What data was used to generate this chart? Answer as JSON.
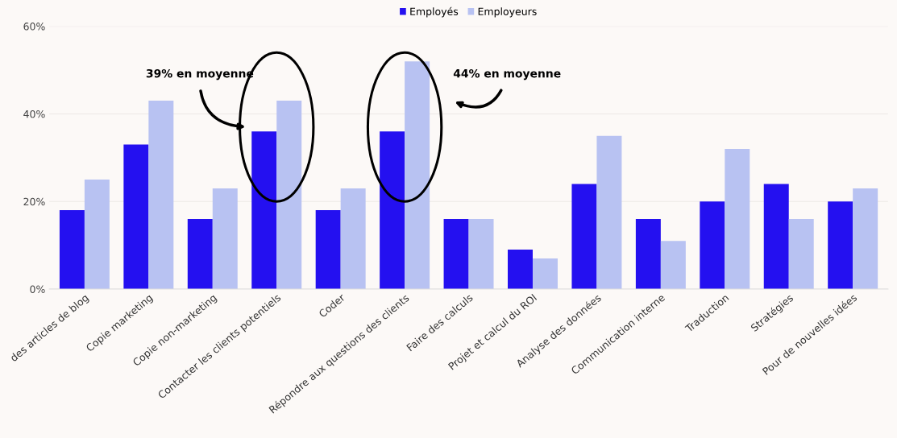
{
  "chart_data": {
    "type": "bar",
    "categories": [
      "des articles de blog",
      "Copie marketing",
      "Copie non-marketing",
      "Contacter les clients potentiels",
      "Coder",
      "Répondre aux questions des clients",
      "Faire des calculs",
      "Projet et calcul du ROI",
      "Analyse des données",
      "Communication interne",
      "Traduction",
      "Stratégies",
      "Pour de nouvelles idées"
    ],
    "series": [
      {
        "name": "Employés",
        "color": "#2410f0",
        "values": [
          18,
          33,
          16,
          36,
          18,
          36,
          16,
          9,
          24,
          16,
          20,
          24,
          20
        ]
      },
      {
        "name": "Employeurs",
        "color": "#b8c2f2",
        "values": [
          25,
          43,
          23,
          43,
          23,
          52,
          16,
          7,
          35,
          11,
          32,
          16,
          23
        ]
      }
    ],
    "ylim": [
      0,
      60
    ],
    "yticks": [
      {
        "value": 0,
        "label": "0%"
      },
      {
        "value": 20,
        "label": "20%"
      },
      {
        "value": 40,
        "label": "40%"
      },
      {
        "value": 60,
        "label": "60%"
      }
    ],
    "grid": "y",
    "legend": "top",
    "annotations": [
      "39% en moyenne",
      "44% en moyenne"
    ]
  }
}
